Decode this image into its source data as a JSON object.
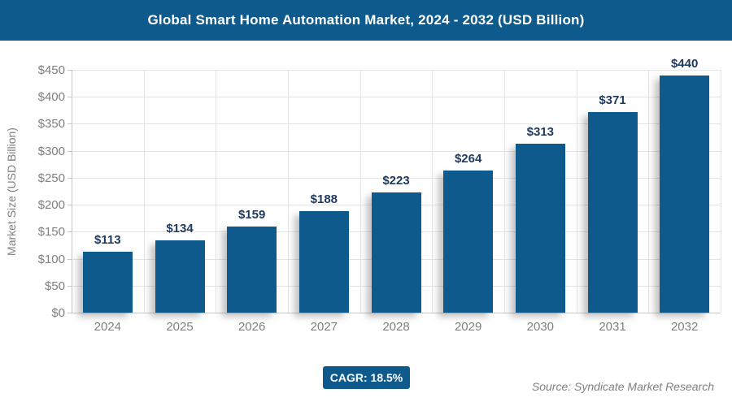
{
  "header": {
    "title": "Global Smart Home Automation Market, 2024 - 2032 (USD Billion)"
  },
  "chart_data": {
    "type": "bar",
    "title": "Global Smart Home Automation Market, 2024 - 2032 (USD Billion)",
    "categories": [
      "2024",
      "2025",
      "2026",
      "2027",
      "2028",
      "2029",
      "2030",
      "2031",
      "2032"
    ],
    "values": [
      113,
      134,
      159,
      188,
      223,
      264,
      313,
      371,
      440
    ],
    "value_labels": [
      "$113",
      "$134",
      "$159",
      "$188",
      "$223",
      "$264",
      "$313",
      "$371",
      "$440"
    ],
    "xlabel": "",
    "ylabel": "Market Size (USD Billion)",
    "ylim": [
      0,
      450
    ],
    "ytick_step": 50,
    "ytick_labels": [
      "$0",
      "$50",
      "$100",
      "$150",
      "$200",
      "$250",
      "$300",
      "$350",
      "$400",
      "$450"
    ],
    "grid": true,
    "legend": "none",
    "bar_color": "#0e5a8c",
    "value_label_color": "#1f3a5f"
  },
  "footer": {
    "cagr_label": "CAGR: 18.5%",
    "source": "Source: Syndicate Market Research"
  },
  "colors": {
    "accent_blue": "#0e5a8c",
    "gridline": "#e4e4e4",
    "axis": "#c6c6c6",
    "tick_text": "#7f7f7f",
    "value_label": "#1f3a5f"
  }
}
